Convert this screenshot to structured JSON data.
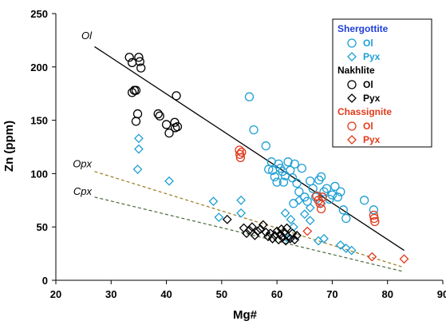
{
  "chart_data": {
    "type": "scatter",
    "xlabel": "Mg#",
    "ylabel": "Zn (ppm)",
    "xlim": [
      20,
      90
    ],
    "ylim": [
      0,
      250
    ],
    "xticks": [
      20,
      30,
      40,
      50,
      60,
      70,
      80,
      90
    ],
    "yticks": [
      0,
      50,
      100,
      150,
      200,
      250
    ],
    "grid": false,
    "legend_position": "top-right",
    "legend": {
      "groups": [
        {
          "name": "Shergottite",
          "color": "#1f3fd8",
          "items": [
            {
              "label": "Ol",
              "marker": "circle",
              "color": "#1e9fd4"
            },
            {
              "label": "Pyx",
              "marker": "diamond",
              "color": "#1e9fd4"
            }
          ]
        },
        {
          "name": "Nakhlite",
          "color": "#000000",
          "items": [
            {
              "label": "Ol",
              "marker": "circle",
              "color": "#000000"
            },
            {
              "label": "Pyx",
              "marker": "diamond",
              "color": "#000000"
            }
          ]
        },
        {
          "name": "Chassignite",
          "color": "#e23a1c",
          "items": [
            {
              "label": "Ol",
              "marker": "circle",
              "color": "#e23a1c"
            },
            {
              "label": "Pyx",
              "marker": "diamond",
              "color": "#e23a1c"
            }
          ]
        }
      ]
    },
    "trend_lines": [
      {
        "label": "Ol",
        "style": "solid",
        "color": "#000000",
        "points": [
          [
            27,
            219
          ],
          [
            83,
            28
          ]
        ]
      },
      {
        "label": "Opx",
        "style": "dashed",
        "color": "#9a7a22",
        "points": [
          [
            27,
            102
          ],
          [
            83,
            12
          ]
        ]
      },
      {
        "label": "Cpx",
        "style": "dashed",
        "color": "#4a6a3a",
        "points": [
          [
            27,
            78
          ],
          [
            83,
            8
          ]
        ]
      }
    ],
    "series": [
      {
        "name": "Shergottite Ol",
        "marker": "circle",
        "color": "#1e9fd4",
        "points": [
          [
            55,
            172
          ],
          [
            55.8,
            141
          ],
          [
            58,
            126
          ],
          [
            58.5,
            104
          ],
          [
            59,
            111
          ],
          [
            59.2,
            103
          ],
          [
            59.6,
            97
          ],
          [
            60,
            92
          ],
          [
            60.3,
            109
          ],
          [
            60.6,
            105
          ],
          [
            61,
            102
          ],
          [
            61.2,
            92
          ],
          [
            61.5,
            98
          ],
          [
            62,
            111
          ],
          [
            62.4,
            103
          ],
          [
            62.8,
            96
          ],
          [
            63.2,
            109
          ],
          [
            63.6,
            91
          ],
          [
            64,
            83
          ],
          [
            64.5,
            105
          ],
          [
            65,
            78
          ],
          [
            65.5,
            74
          ],
          [
            66,
            93
          ],
          [
            66.5,
            86
          ],
          [
            67,
            78
          ],
          [
            67.6,
            94
          ],
          [
            68,
            97
          ],
          [
            68.5,
            83
          ],
          [
            69,
            86
          ],
          [
            69.5,
            76
          ],
          [
            70,
            80
          ],
          [
            70.5,
            88
          ],
          [
            71,
            78
          ],
          [
            71.5,
            83
          ],
          [
            72,
            66
          ],
          [
            72.5,
            58
          ],
          [
            75.8,
            75
          ],
          [
            77.5,
            66
          ],
          [
            63,
            72
          ]
        ]
      },
      {
        "name": "Shergottite Pyx",
        "marker": "diamond",
        "color": "#1e9fd4",
        "points": [
          [
            35,
            133
          ],
          [
            35,
            123
          ],
          [
            34.8,
            104
          ],
          [
            40.5,
            93
          ],
          [
            48.5,
            74
          ],
          [
            49.5,
            59
          ],
          [
            53.5,
            75
          ],
          [
            53.5,
            63
          ],
          [
            61.5,
            63
          ],
          [
            62.5,
            57
          ],
          [
            63,
            50
          ],
          [
            64,
            75
          ],
          [
            65,
            62
          ],
          [
            66,
            56
          ],
          [
            67.5,
            37
          ],
          [
            68.5,
            39
          ],
          [
            71.5,
            33
          ],
          [
            72.5,
            30
          ],
          [
            73.5,
            28
          ],
          [
            68,
            72
          ],
          [
            66,
            68
          ],
          [
            62,
            39
          ]
        ]
      },
      {
        "name": "Nakhlite Ol",
        "marker": "circle",
        "color": "#000000",
        "points": [
          [
            33.3,
            209
          ],
          [
            33.8,
            204
          ],
          [
            34.2,
            178
          ],
          [
            33.8,
            176
          ],
          [
            34.5,
            178
          ],
          [
            35,
            209
          ],
          [
            35.2,
            205
          ],
          [
            35.4,
            199
          ],
          [
            34.8,
            156
          ],
          [
            34.5,
            149
          ],
          [
            38.5,
            156
          ],
          [
            38.8,
            154
          ],
          [
            40,
            146
          ],
          [
            40.5,
            138
          ],
          [
            41.5,
            148
          ],
          [
            41.6,
            143
          ],
          [
            42,
            144
          ],
          [
            41.8,
            173
          ]
        ]
      },
      {
        "name": "Nakhlite Pyx",
        "marker": "diamond",
        "color": "#000000",
        "points": [
          [
            51,
            57
          ],
          [
            54,
            49
          ],
          [
            54.5,
            44
          ],
          [
            55,
            47
          ],
          [
            55.5,
            50
          ],
          [
            56,
            42
          ],
          [
            56.5,
            46
          ],
          [
            57,
            48
          ],
          [
            57.5,
            52
          ],
          [
            58,
            45
          ],
          [
            58.4,
            41
          ],
          [
            58.8,
            44
          ],
          [
            59.2,
            39
          ],
          [
            59.6,
            42
          ],
          [
            60,
            46
          ],
          [
            60.3,
            38
          ],
          [
            60.6,
            43
          ],
          [
            61,
            40
          ],
          [
            61.3,
            45
          ],
          [
            61.6,
            37
          ],
          [
            62,
            41
          ],
          [
            62.4,
            39
          ],
          [
            62.8,
            44
          ],
          [
            63.2,
            38
          ],
          [
            63.6,
            42
          ],
          [
            60.8,
            48
          ],
          [
            61.8,
            49
          ]
        ]
      },
      {
        "name": "Chassignite Ol",
        "marker": "circle",
        "color": "#e23a1c",
        "points": [
          [
            53.2,
            122
          ],
          [
            53.3,
            118
          ],
          [
            53.4,
            115
          ],
          [
            53.6,
            120
          ],
          [
            67.2,
            79
          ],
          [
            67.5,
            75
          ],
          [
            67.8,
            72
          ],
          [
            68,
            67
          ],
          [
            68.2,
            78
          ],
          [
            77.5,
            61
          ],
          [
            77.6,
            58
          ],
          [
            77.7,
            55
          ]
        ]
      },
      {
        "name": "Chassignite Pyx",
        "marker": "diamond",
        "color": "#e23a1c",
        "points": [
          [
            65.5,
            46
          ],
          [
            77.2,
            22
          ],
          [
            83,
            20
          ]
        ]
      }
    ]
  }
}
